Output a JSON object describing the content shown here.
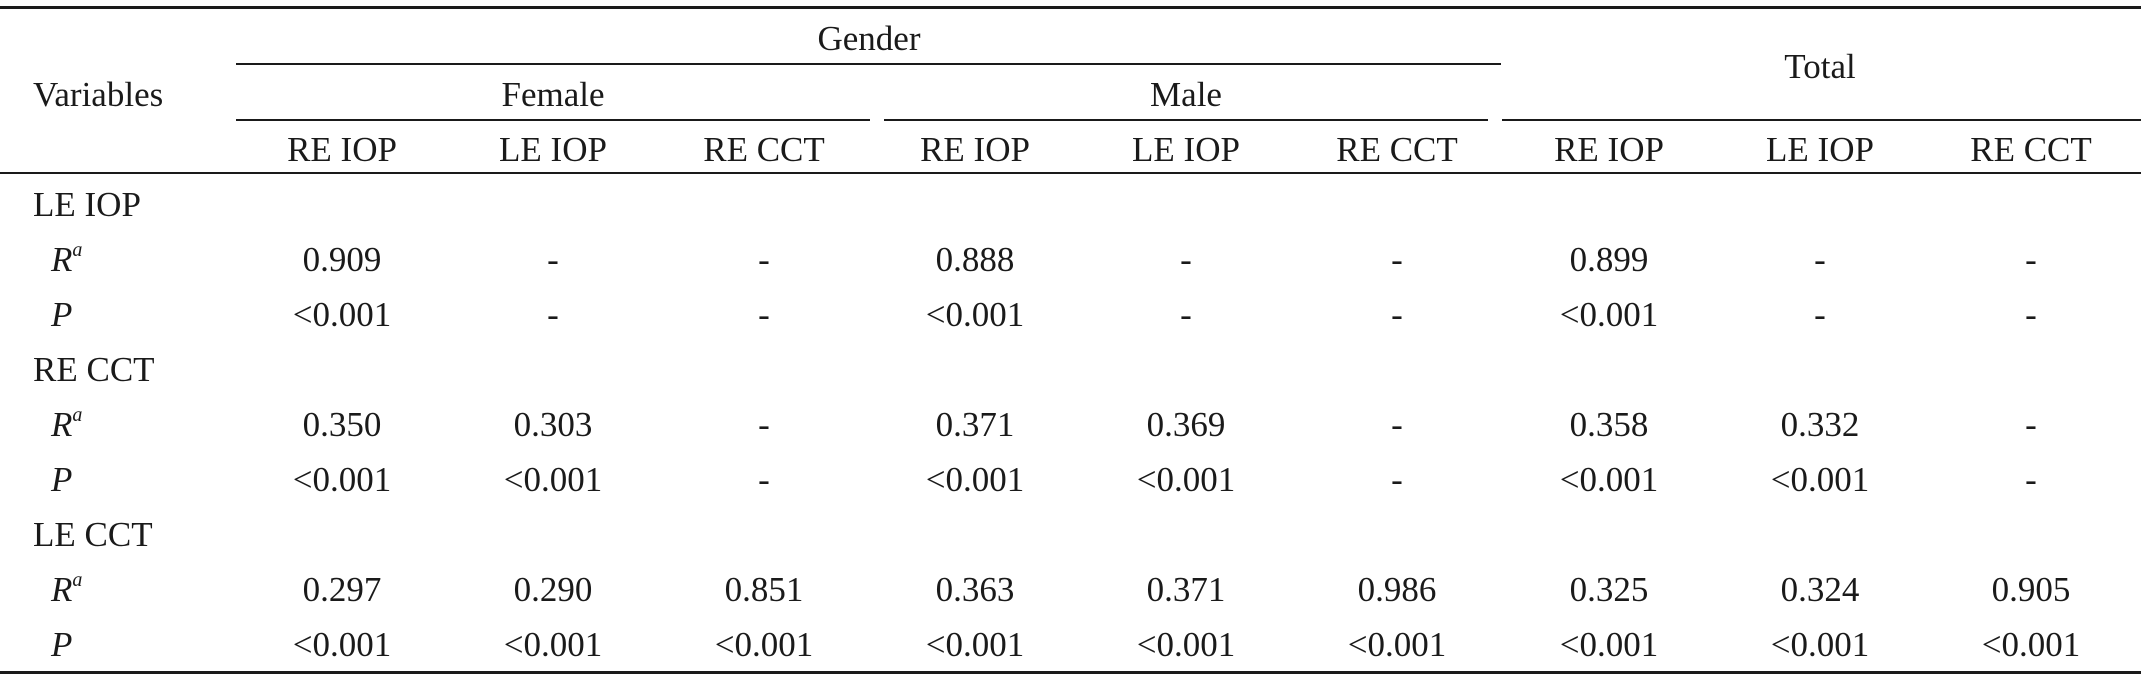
{
  "header": {
    "variables": "Variables",
    "gender": "Gender",
    "total": "Total",
    "female": "Female",
    "male": "Male",
    "columns": [
      "RE IOP",
      "LE IOP",
      "RE CCT",
      "RE IOP",
      "LE IOP",
      "RE CCT",
      "RE IOP",
      "LE IOP",
      "RE CCT"
    ]
  },
  "groups": [
    {
      "label": "LE IOP",
      "r_label": "R",
      "r_sup": "a",
      "p_label": "P",
      "r": [
        "0.909",
        "-",
        "-",
        "0.888",
        "-",
        "-",
        "0.899",
        "-",
        "-"
      ],
      "p": [
        "<0.001",
        "-",
        "-",
        "<0.001",
        "-",
        "-",
        "<0.001",
        "-",
        "-"
      ]
    },
    {
      "label": "RE CCT",
      "r_label": "R",
      "r_sup": "a",
      "p_label": "P",
      "r": [
        "0.350",
        "0.303",
        "-",
        "0.371",
        "0.369",
        "-",
        "0.358",
        "0.332",
        "-"
      ],
      "p": [
        "<0.001",
        "<0.001",
        "-",
        "<0.001",
        "<0.001",
        "-",
        "<0.001",
        "<0.001",
        "-"
      ]
    },
    {
      "label": "LE CCT",
      "r_label": "R",
      "r_sup": "a",
      "p_label": "P",
      "r": [
        "0.297",
        "0.290",
        "0.851",
        "0.363",
        "0.371",
        "0.986",
        "0.325",
        "0.324",
        "0.905"
      ],
      "p": [
        "<0.001",
        "<0.001",
        "<0.001",
        "<0.001",
        "<0.001",
        "<0.001",
        "<0.001",
        "<0.001",
        "<0.001"
      ]
    }
  ]
}
